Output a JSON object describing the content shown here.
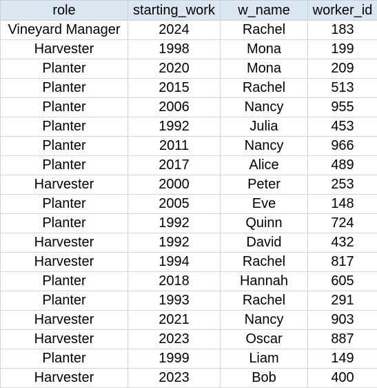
{
  "table": {
    "columns": [
      "role",
      "starting_work",
      "w_name",
      "worker_id"
    ],
    "rows": [
      [
        "Vineyard Manager",
        "2024",
        "Rachel",
        "183"
      ],
      [
        "Harvester",
        "1998",
        "Mona",
        "199"
      ],
      [
        "Planter",
        "2020",
        "Mona",
        "209"
      ],
      [
        "Planter",
        "2015",
        "Rachel",
        "513"
      ],
      [
        "Planter",
        "2006",
        "Nancy",
        "955"
      ],
      [
        "Planter",
        "1992",
        "Julia",
        "453"
      ],
      [
        "Planter",
        "2011",
        "Nancy",
        "966"
      ],
      [
        "Planter",
        "2017",
        "Alice",
        "489"
      ],
      [
        "Harvester",
        "2000",
        "Peter",
        "253"
      ],
      [
        "Planter",
        "2005",
        "Eve",
        "148"
      ],
      [
        "Planter",
        "1992",
        "Quinn",
        "724"
      ],
      [
        "Harvester",
        "1992",
        "David",
        "432"
      ],
      [
        "Harvester",
        "1994",
        "Rachel",
        "817"
      ],
      [
        "Planter",
        "2018",
        "Hannah",
        "605"
      ],
      [
        "Planter",
        "1993",
        "Rachel",
        "291"
      ],
      [
        "Harvester",
        "2021",
        "Nancy",
        "903"
      ],
      [
        "Harvester",
        "2023",
        "Oscar",
        "887"
      ],
      [
        "Planter",
        "1999",
        "Liam",
        "149"
      ],
      [
        "Harvester",
        "2023",
        "Bob",
        "400"
      ]
    ]
  },
  "colors": {
    "header_fill": "#dce6f1",
    "gridline": "#d4d4d4",
    "text": "#000000"
  }
}
